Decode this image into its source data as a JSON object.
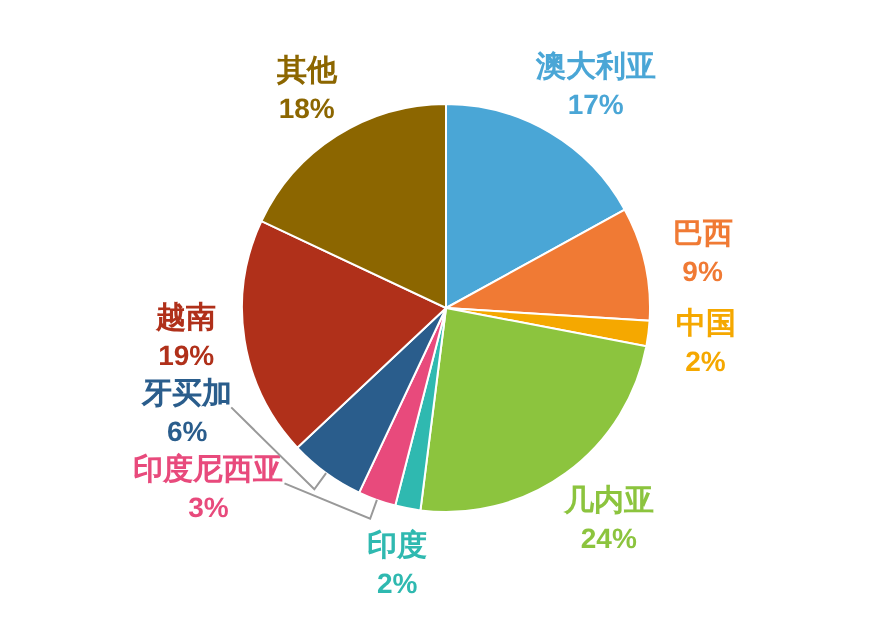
{
  "chart_data": {
    "type": "pie",
    "categories": [
      "澳大利亚",
      "巴西",
      "中国",
      "几内亚",
      "印度",
      "印度尼西亚",
      "牙买加",
      "越南",
      "其他"
    ],
    "values": [
      17,
      9,
      2,
      24,
      2,
      3,
      6,
      19,
      18
    ],
    "value_labels": [
      "17%",
      "9%",
      "2%",
      "24%",
      "2%",
      "3%",
      "6%",
      "19%",
      "18%"
    ],
    "colors": [
      "#4aa6d6",
      "#f07a34",
      "#f5a800",
      "#8cc43e",
      "#2fb9b0",
      "#e84a7c",
      "#2a5d8c",
      "#b0301a",
      "#8c6600"
    ],
    "legend": false
  }
}
